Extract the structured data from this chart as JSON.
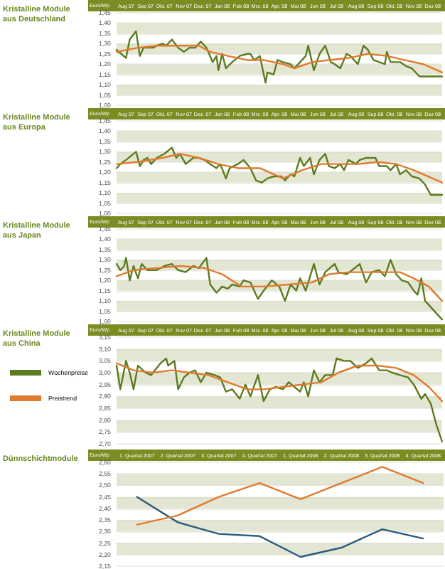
{
  "chart_data": [
    {
      "type": "line",
      "title": "Kristalline Module aus Deutschland",
      "ylabel": "Euro/Wp",
      "grid": "y",
      "marker": "none",
      "line_style": "solid",
      "xlim": [
        "2007-08-01",
        "2008-12-31"
      ],
      "xticks": [
        {
          "value": "2007-08-16",
          "label": "Aug 07"
        },
        {
          "value": "2007-09-16",
          "label": "Sep 07"
        },
        {
          "value": "2007-10-16",
          "label": "Okt. 07"
        },
        {
          "value": "2007-11-16",
          "label": "Nov 07"
        },
        {
          "value": "2007-12-16",
          "label": "Dez. 07"
        },
        {
          "value": "2008-01-16",
          "label": "Jan 08"
        },
        {
          "value": "2008-02-15",
          "label": "Feb 08"
        },
        {
          "value": "2008-03-16",
          "label": "Mrz. 08"
        },
        {
          "value": "2008-04-16",
          "label": "Apr. 08"
        },
        {
          "value": "2008-05-16",
          "label": "Mai 08"
        },
        {
          "value": "2008-06-16",
          "label": "Jun 08"
        },
        {
          "value": "2008-07-16",
          "label": "Jul 08"
        },
        {
          "value": "2008-08-16",
          "label": "Aug 08"
        },
        {
          "value": "2008-09-16",
          "label": "Sep 08"
        },
        {
          "value": "2008-10-16",
          "label": "Okt. 08"
        },
        {
          "value": "2008-11-16",
          "label": "Nov 08"
        },
        {
          "value": "2008-12-16",
          "label": "Dez 08"
        }
      ],
      "ylim": [
        1.0,
        1.45
      ],
      "yticks": [
        {
          "value": 1.0,
          "label": "1,00"
        },
        {
          "value": 1.05,
          "label": "1,05"
        },
        {
          "value": 1.1,
          "label": "1,10"
        },
        {
          "value": 1.15,
          "label": "1,15"
        },
        {
          "value": 1.2,
          "label": "1,20"
        },
        {
          "value": 1.25,
          "label": "1,25"
        },
        {
          "value": 1.3,
          "label": "1,30"
        },
        {
          "value": 1.35,
          "label": "1,35"
        },
        {
          "value": 1.4,
          "label": "1,40"
        },
        {
          "value": 1.45,
          "label": "1,45"
        }
      ],
      "series": [
        {
          "color": "#5b7b1f",
          "x": [
            "2007-08-01",
            "2007-08-16",
            "2007-08-22",
            "2007-09-01",
            "2007-09-07",
            "2007-09-13",
            "2007-09-28",
            "2007-10-04",
            "2007-10-13",
            "2007-10-19",
            "2007-10-28",
            "2007-11-07",
            "2007-11-16",
            "2007-11-25",
            "2007-12-04",
            "2007-12-13",
            "2007-12-22",
            "2008-01-01",
            "2008-01-07",
            "2008-01-10",
            "2008-01-16",
            "2008-01-22",
            "2008-02-01",
            "2008-02-13",
            "2008-02-25",
            "2008-03-01",
            "2008-03-07",
            "2008-03-16",
            "2008-03-25",
            "2008-03-28",
            "2008-04-07",
            "2008-04-13",
            "2008-04-22",
            "2008-05-04",
            "2008-05-10",
            "2008-05-19",
            "2008-05-28",
            "2008-06-01",
            "2008-06-10",
            "2008-06-19",
            "2008-06-28",
            "2008-07-07",
            "2008-07-13",
            "2008-07-22",
            "2008-08-01",
            "2008-08-07",
            "2008-08-19",
            "2008-08-28",
            "2008-09-04",
            "2008-09-13",
            "2008-09-22",
            "2008-10-01",
            "2008-10-04",
            "2008-10-10",
            "2008-10-19",
            "2008-10-25",
            "2008-11-04",
            "2008-11-13",
            "2008-11-25",
            "2008-12-07",
            "2008-12-16",
            "2008-12-31"
          ],
          "values": [
            1.27,
            1.23,
            1.32,
            1.36,
            1.24,
            1.28,
            1.28,
            1.29,
            1.3,
            1.29,
            1.32,
            1.28,
            1.26,
            1.28,
            1.28,
            1.31,
            1.28,
            1.21,
            1.24,
            1.17,
            1.25,
            1.18,
            1.21,
            1.24,
            1.25,
            1.25,
            1.22,
            1.24,
            1.11,
            1.16,
            1.15,
            1.22,
            1.21,
            1.2,
            1.18,
            1.21,
            1.24,
            1.29,
            1.17,
            1.25,
            1.29,
            1.21,
            1.2,
            1.18,
            1.25,
            1.24,
            1.2,
            1.29,
            1.27,
            1.22,
            1.21,
            1.2,
            1.26,
            1.21,
            1.21,
            1.21,
            1.19,
            1.18,
            1.14,
            1.14,
            1.14,
            1.14
          ]
        },
        {
          "color": "#e07a2e",
          "x": [
            "2007-08-01",
            "2007-09-04",
            "2007-10-04",
            "2007-11-10",
            "2007-12-10",
            "2007-12-28",
            "2008-01-25",
            "2008-02-25",
            "2008-03-22",
            "2008-04-22",
            "2008-05-10",
            "2008-06-07",
            "2008-07-04",
            "2008-08-04",
            "2008-09-04",
            "2008-10-04",
            "2008-11-01",
            "2008-12-01",
            "2008-12-31"
          ],
          "values": [
            1.26,
            1.28,
            1.29,
            1.29,
            1.29,
            1.26,
            1.24,
            1.22,
            1.22,
            1.2,
            1.18,
            1.21,
            1.22,
            1.23,
            1.25,
            1.24,
            1.22,
            1.2,
            1.16
          ]
        }
      ]
    },
    {
      "type": "line",
      "title": "Kristalline Module aus Europa",
      "ylabel": "Euro/Wp",
      "grid": "y",
      "marker": "none",
      "line_style": "solid",
      "xlim": [
        "2007-08-01",
        "2008-12-31"
      ],
      "xticks": [
        {
          "value": "2007-08-16",
          "label": "Aug 07"
        },
        {
          "value": "2007-09-16",
          "label": "Sep 07"
        },
        {
          "value": "2007-10-16",
          "label": "Okt. 07"
        },
        {
          "value": "2007-11-16",
          "label": "Nov 07"
        },
        {
          "value": "2007-12-16",
          "label": "Dez. 07"
        },
        {
          "value": "2008-01-16",
          "label": "Jan 08"
        },
        {
          "value": "2008-02-15",
          "label": "Feb 08"
        },
        {
          "value": "2008-03-16",
          "label": "Mrz. 08"
        },
        {
          "value": "2008-04-16",
          "label": "Apr. 08"
        },
        {
          "value": "2008-05-16",
          "label": "Mai 08"
        },
        {
          "value": "2008-06-16",
          "label": "Jun 08"
        },
        {
          "value": "2008-07-16",
          "label": "Jul 08"
        },
        {
          "value": "2008-08-16",
          "label": "Aug 08"
        },
        {
          "value": "2008-09-16",
          "label": "Sep 08"
        },
        {
          "value": "2008-10-16",
          "label": "Okt. 08"
        },
        {
          "value": "2008-11-16",
          "label": "Nov 08"
        },
        {
          "value": "2008-12-16",
          "label": "Dez 08"
        }
      ],
      "ylim": [
        1.0,
        1.45
      ],
      "yticks": [
        {
          "value": 1.0,
          "label": "1,00"
        },
        {
          "value": 1.05,
          "label": "1,05"
        },
        {
          "value": 1.1,
          "label": "1,10"
        },
        {
          "value": 1.15,
          "label": "1,15"
        },
        {
          "value": 1.2,
          "label": "1,20"
        },
        {
          "value": 1.25,
          "label": "1,25"
        },
        {
          "value": 1.3,
          "label": "1,30"
        },
        {
          "value": 1.35,
          "label": "1,35"
        },
        {
          "value": 1.4,
          "label": "1,40"
        },
        {
          "value": 1.45,
          "label": "1,45"
        }
      ],
      "series": [
        {
          "color": "#5b7b1f",
          "x": [
            "2007-08-01",
            "2007-08-07",
            "2007-08-16",
            "2007-09-01",
            "2007-09-07",
            "2007-09-13",
            "2007-09-19",
            "2007-09-25",
            "2007-10-04",
            "2007-10-16",
            "2007-10-28",
            "2007-11-04",
            "2007-11-10",
            "2007-11-19",
            "2007-12-01",
            "2007-12-10",
            "2007-12-19",
            "2007-12-28",
            "2008-01-07",
            "2008-01-13",
            "2008-01-22",
            "2008-01-28",
            "2008-02-10",
            "2008-02-19",
            "2008-03-01",
            "2008-03-10",
            "2008-03-19",
            "2008-03-28",
            "2008-04-07",
            "2008-04-19",
            "2008-04-25",
            "2008-05-04",
            "2008-05-10",
            "2008-05-19",
            "2008-05-25",
            "2008-06-04",
            "2008-06-10",
            "2008-06-19",
            "2008-06-28",
            "2008-07-04",
            "2008-07-13",
            "2008-07-22",
            "2008-07-28",
            "2008-08-04",
            "2008-08-16",
            "2008-08-22",
            "2008-09-01",
            "2008-09-16",
            "2008-09-22",
            "2008-10-04",
            "2008-10-10",
            "2008-10-19",
            "2008-10-25",
            "2008-11-04",
            "2008-11-13",
            "2008-11-25",
            "2008-12-04",
            "2008-12-13",
            "2008-12-31"
          ],
          "values": [
            1.22,
            1.24,
            1.26,
            1.3,
            1.23,
            1.26,
            1.27,
            1.24,
            1.27,
            1.29,
            1.32,
            1.27,
            1.29,
            1.24,
            1.27,
            1.27,
            1.26,
            1.24,
            1.22,
            1.24,
            1.17,
            1.22,
            1.24,
            1.26,
            1.22,
            1.16,
            1.15,
            1.17,
            1.18,
            1.18,
            1.16,
            1.19,
            1.18,
            1.27,
            1.23,
            1.27,
            1.19,
            1.26,
            1.29,
            1.23,
            1.22,
            1.24,
            1.21,
            1.26,
            1.24,
            1.26,
            1.27,
            1.27,
            1.23,
            1.23,
            1.21,
            1.24,
            1.19,
            1.21,
            1.18,
            1.17,
            1.14,
            1.09,
            1.09
          ]
        },
        {
          "color": "#e07a2e",
          "x": [
            "2007-08-01",
            "2007-09-04",
            "2007-10-13",
            "2007-11-10",
            "2007-12-10",
            "2008-01-10",
            "2008-02-10",
            "2008-03-16",
            "2008-04-22",
            "2008-05-22",
            "2008-06-22",
            "2008-07-19",
            "2008-08-19",
            "2008-09-19",
            "2008-10-19",
            "2008-11-16",
            "2008-12-31"
          ],
          "values": [
            1.24,
            1.25,
            1.27,
            1.29,
            1.27,
            1.24,
            1.22,
            1.22,
            1.17,
            1.21,
            1.24,
            1.24,
            1.24,
            1.25,
            1.24,
            1.21,
            1.15
          ]
        }
      ]
    },
    {
      "type": "line",
      "title": "Kristalline Module aus Japan",
      "ylabel": "Euro/Wp",
      "grid": "y",
      "marker": "none",
      "line_style": "solid",
      "xlim": [
        "2007-08-01",
        "2008-12-31"
      ],
      "xticks": [
        {
          "value": "2007-08-16",
          "label": "Aug 07"
        },
        {
          "value": "2007-09-16",
          "label": "Sep 07"
        },
        {
          "value": "2007-10-16",
          "label": "Okt. 07"
        },
        {
          "value": "2007-11-16",
          "label": "Nov 07"
        },
        {
          "value": "2007-12-16",
          "label": "Dez. 07"
        },
        {
          "value": "2008-01-16",
          "label": "Jan 08"
        },
        {
          "value": "2008-02-15",
          "label": "Feb 08"
        },
        {
          "value": "2008-03-16",
          "label": "Mrz. 08"
        },
        {
          "value": "2008-04-16",
          "label": "Apr. 08"
        },
        {
          "value": "2008-05-16",
          "label": "Mai 08"
        },
        {
          "value": "2008-06-16",
          "label": "Jun 08"
        },
        {
          "value": "2008-07-16",
          "label": "Jul 08"
        },
        {
          "value": "2008-08-16",
          "label": "Aug 08"
        },
        {
          "value": "2008-09-16",
          "label": "Sep 08"
        },
        {
          "value": "2008-10-16",
          "label": "Okt. 08"
        },
        {
          "value": "2008-11-16",
          "label": "Nov 08"
        },
        {
          "value": "2008-12-16",
          "label": "Dez 08"
        }
      ],
      "ylim": [
        1.0,
        1.45
      ],
      "yticks": [
        {
          "value": 1.0,
          "label": "1,00"
        },
        {
          "value": 1.05,
          "label": "1,05"
        },
        {
          "value": 1.1,
          "label": "1,10"
        },
        {
          "value": 1.15,
          "label": "1,15"
        },
        {
          "value": 1.2,
          "label": "1,20"
        },
        {
          "value": 1.25,
          "label": "1,25"
        },
        {
          "value": 1.3,
          "label": "1,30"
        },
        {
          "value": 1.35,
          "label": "1,35"
        },
        {
          "value": 1.4,
          "label": "1,40"
        },
        {
          "value": 1.45,
          "label": "1,45"
        }
      ],
      "series": [
        {
          "color": "#5b7b1f",
          "x": [
            "2007-08-01",
            "2007-08-07",
            "2007-08-13",
            "2007-08-16",
            "2007-08-22",
            "2007-08-28",
            "2007-09-04",
            "2007-09-10",
            "2007-09-19",
            "2007-10-04",
            "2007-10-16",
            "2007-10-28",
            "2007-11-07",
            "2007-11-19",
            "2007-12-01",
            "2007-12-10",
            "2007-12-22",
            "2007-12-28",
            "2008-01-07",
            "2008-01-16",
            "2008-01-25",
            "2008-02-01",
            "2008-02-13",
            "2008-02-19",
            "2008-03-01",
            "2008-03-13",
            "2008-03-22",
            "2008-04-04",
            "2008-04-16",
            "2008-04-25",
            "2008-05-04",
            "2008-05-13",
            "2008-05-19",
            "2008-05-28",
            "2008-06-10",
            "2008-06-19",
            "2008-06-28",
            "2008-07-13",
            "2008-07-19",
            "2008-08-01",
            "2008-08-10",
            "2008-08-22",
            "2008-09-01",
            "2008-09-10",
            "2008-09-22",
            "2008-10-01",
            "2008-10-10",
            "2008-10-19",
            "2008-10-28",
            "2008-11-07",
            "2008-11-16",
            "2008-11-22",
            "2008-11-28",
            "2008-12-04",
            "2008-12-16",
            "2008-12-31"
          ],
          "values": [
            1.28,
            1.25,
            1.27,
            1.31,
            1.2,
            1.27,
            1.21,
            1.28,
            1.25,
            1.25,
            1.27,
            1.28,
            1.25,
            1.24,
            1.27,
            1.26,
            1.31,
            1.18,
            1.14,
            1.17,
            1.16,
            1.18,
            1.17,
            1.2,
            1.19,
            1.11,
            1.15,
            1.2,
            1.17,
            1.1,
            1.18,
            1.15,
            1.21,
            1.15,
            1.28,
            1.18,
            1.24,
            1.28,
            1.24,
            1.23,
            1.25,
            1.28,
            1.19,
            1.24,
            1.25,
            1.22,
            1.3,
            1.23,
            1.2,
            1.19,
            1.15,
            1.13,
            1.21,
            1.1,
            1.06,
            1.01
          ]
        },
        {
          "color": "#e07a2e",
          "x": [
            "2007-08-01",
            "2007-08-28",
            "2007-10-04",
            "2007-11-10",
            "2007-12-19",
            "2008-01-16",
            "2008-02-16",
            "2008-03-22",
            "2008-05-01",
            "2008-06-07",
            "2008-07-04",
            "2008-08-04",
            "2008-09-04",
            "2008-10-04",
            "2008-10-25",
            "2008-11-16",
            "2008-12-10",
            "2008-12-31"
          ],
          "values": [
            1.22,
            1.25,
            1.26,
            1.27,
            1.26,
            1.23,
            1.17,
            1.17,
            1.18,
            1.19,
            1.23,
            1.24,
            1.24,
            1.24,
            1.24,
            1.21,
            1.17,
            1.1
          ]
        }
      ]
    },
    {
      "type": "line",
      "title": "Kristalline Module aus China",
      "ylabel": "Euro/Wp",
      "grid": "y",
      "marker": "none",
      "line_style": "solid",
      "legend": "left",
      "xlim": [
        "2007-08-01",
        "2008-12-31"
      ],
      "xticks": [
        {
          "value": "2007-08-16",
          "label": "Aug 07"
        },
        {
          "value": "2007-09-16",
          "label": "Sep 07"
        },
        {
          "value": "2007-10-16",
          "label": "Okt. 07"
        },
        {
          "value": "2007-11-16",
          "label": "Nov 07"
        },
        {
          "value": "2007-12-16",
          "label": "Dez. 07"
        },
        {
          "value": "2008-01-16",
          "label": "Jan 08"
        },
        {
          "value": "2008-02-15",
          "label": "Feb 08"
        },
        {
          "value": "2008-03-16",
          "label": "Mrz. 08"
        },
        {
          "value": "2008-04-16",
          "label": "Apr. 08"
        },
        {
          "value": "2008-05-16",
          "label": "Mai 08"
        },
        {
          "value": "2008-06-16",
          "label": "Jun 08"
        },
        {
          "value": "2008-07-16",
          "label": "Jul 08"
        },
        {
          "value": "2008-08-16",
          "label": "Aug 08"
        },
        {
          "value": "2008-09-16",
          "label": "Sep 08"
        },
        {
          "value": "2008-10-16",
          "label": "Okt. 08"
        },
        {
          "value": "2008-11-16",
          "label": "Nov 08"
        },
        {
          "value": "2008-12-16",
          "label": "Dez 08"
        }
      ],
      "ylim": [
        2.7,
        3.15
      ],
      "yticks": [
        {
          "value": 2.7,
          "label": "2,70"
        },
        {
          "value": 2.75,
          "label": "2,75"
        },
        {
          "value": 2.8,
          "label": "2,80"
        },
        {
          "value": 2.85,
          "label": "2,85"
        },
        {
          "value": 2.9,
          "label": "2,90"
        },
        {
          "value": 2.95,
          "label": "2,95"
        },
        {
          "value": 3.0,
          "label": "3,00"
        },
        {
          "value": 3.05,
          "label": "3,05"
        },
        {
          "value": 3.1,
          "label": "3,10"
        },
        {
          "value": 3.15,
          "label": "3,15"
        }
      ],
      "series": [
        {
          "name": "Wochenpreise",
          "color": "#5b7b1f",
          "x": [
            "2007-08-01",
            "2007-08-07",
            "2007-08-16",
            "2007-08-22",
            "2007-08-28",
            "2007-09-04",
            "2007-09-16",
            "2007-09-25",
            "2007-10-04",
            "2007-10-10",
            "2007-10-19",
            "2007-10-22",
            "2007-11-01",
            "2007-11-07",
            "2007-11-16",
            "2007-11-25",
            "2007-12-04",
            "2007-12-13",
            "2007-12-22",
            "2008-01-04",
            "2008-01-13",
            "2008-01-22",
            "2008-02-01",
            "2008-02-13",
            "2008-02-22",
            "2008-03-01",
            "2008-03-13",
            "2008-03-22",
            "2008-04-01",
            "2008-04-10",
            "2008-04-22",
            "2008-05-01",
            "2008-05-10",
            "2008-05-19",
            "2008-05-25",
            "2008-06-01",
            "2008-06-10",
            "2008-06-19",
            "2008-06-28",
            "2008-07-10",
            "2008-07-16",
            "2008-07-28",
            "2008-08-07",
            "2008-08-19",
            "2008-09-01",
            "2008-09-10",
            "2008-09-22",
            "2008-10-04",
            "2008-10-13",
            "2008-10-25",
            "2008-11-07",
            "2008-11-16",
            "2008-11-28",
            "2008-12-04",
            "2008-12-13",
            "2008-12-22",
            "2008-12-31"
          ],
          "values": [
            3.03,
            2.93,
            3.05,
            3.0,
            2.93,
            3.03,
            3.0,
            2.99,
            3.02,
            3.04,
            3.06,
            3.03,
            3.05,
            2.93,
            2.98,
            3.0,
            3.01,
            2.96,
            3.0,
            2.99,
            2.98,
            2.92,
            2.93,
            2.89,
            2.95,
            2.9,
            2.99,
            2.88,
            2.93,
            2.94,
            2.93,
            2.96,
            2.94,
            2.92,
            2.96,
            2.9,
            3.01,
            2.96,
            2.99,
            2.99,
            3.06,
            3.05,
            3.05,
            3.02,
            3.04,
            3.06,
            3.01,
            3.01,
            3.0,
            2.99,
            2.98,
            2.95,
            2.89,
            2.91,
            2.87,
            2.78,
            2.71
          ]
        },
        {
          "name": "Preistrend",
          "color": "#e07a2e",
          "x": [
            "2007-08-01",
            "2007-08-28",
            "2007-09-28",
            "2007-10-28",
            "2007-11-25",
            "2007-12-25",
            "2008-01-25",
            "2008-02-25",
            "2008-03-22",
            "2008-04-22",
            "2008-05-22",
            "2008-06-22",
            "2008-07-19",
            "2008-08-19",
            "2008-09-19",
            "2008-10-19",
            "2008-11-16",
            "2008-12-10",
            "2008-12-31"
          ],
          "values": [
            3.04,
            3.01,
            3.0,
            3.01,
            3.0,
            2.99,
            2.96,
            2.93,
            2.93,
            2.94,
            2.95,
            2.96,
            3.0,
            3.03,
            3.03,
            3.02,
            2.99,
            2.94,
            2.88
          ]
        }
      ]
    },
    {
      "type": "line",
      "title": "Dünnschichtmodule",
      "ylabel": "Euro/Wp",
      "grid": "y",
      "marker": "none",
      "line_style": "solid",
      "categories": [
        "1. Quartal 2007",
        "2. Quartal 2007",
        "3. Quartal 2007",
        "4. Quartal 2007",
        "1. Quartal 2008",
        "2. Quartal 2008",
        "3. Quartal 2008",
        "4. Quartal 2008"
      ],
      "ylim": [
        2.15,
        2.6
      ],
      "yticks": [
        {
          "value": 2.15,
          "label": "2,15"
        },
        {
          "value": 2.2,
          "label": "2,20"
        },
        {
          "value": 2.25,
          "label": "2,25"
        },
        {
          "value": 2.3,
          "label": "2,30"
        },
        {
          "value": 2.35,
          "label": "2,35"
        },
        {
          "value": 2.4,
          "label": "2,40"
        },
        {
          "value": 2.45,
          "label": "2,45"
        },
        {
          "value": 2.5,
          "label": "2,50"
        },
        {
          "value": 2.55,
          "label": "2,55"
        },
        {
          "value": 2.6,
          "label": "2,60"
        }
      ],
      "series": [
        {
          "color": "#2b5b7e",
          "values": [
            2.45,
            2.34,
            2.29,
            2.28,
            2.19,
            2.23,
            2.31,
            2.27
          ]
        },
        {
          "color": "#e07a2e",
          "values": [
            2.33,
            2.37,
            2.45,
            2.51,
            2.44,
            2.51,
            2.58,
            2.51
          ]
        }
      ]
    }
  ]
}
